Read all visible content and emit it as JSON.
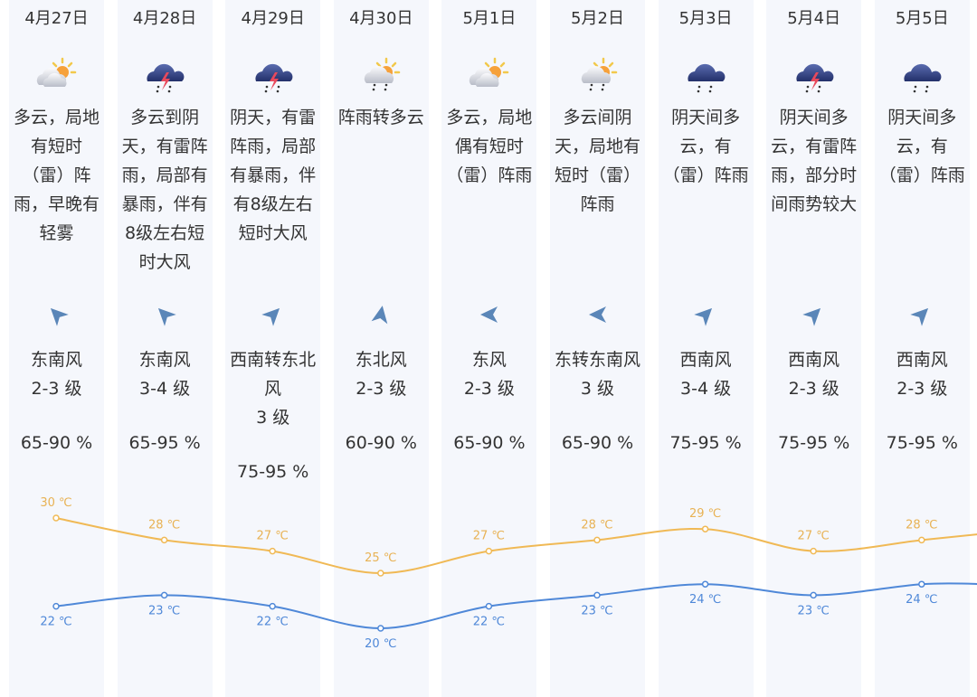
{
  "colors": {
    "high": "#f0b955",
    "low": "#4f88d8",
    "high_label": "#e8b254",
    "low_label": "#4f88d8",
    "column_bg": "#f5f7fc"
  },
  "days": [
    {
      "date": "4月27日",
      "icon": "partly-cloudy-icon",
      "desc": [
        "多云，局地",
        "有短时",
        "（雷）阵",
        "雨，早晚有",
        "轻雾"
      ],
      "wind_dir_deg": 225,
      "wind": [
        "东南风",
        "2-3 级"
      ],
      "humidity": "65-90 %",
      "high": "30 ℃",
      "low": "22 ℃"
    },
    {
      "date": "4月28日",
      "icon": "thunderstorm-icon",
      "desc": [
        "多云到阴",
        "天，有雷阵",
        "雨，局部有",
        "暴雨，伴有",
        "8级左右短",
        "时大风"
      ],
      "wind_dir_deg": 225,
      "wind": [
        "东南风",
        "3-4 级"
      ],
      "humidity": "65-95 %",
      "high": "28 ℃",
      "low": "23 ℃"
    },
    {
      "date": "4月29日",
      "icon": "thunderstorm-icon",
      "desc": [
        "阴天，有雷",
        "阵雨，局部",
        "有暴雨，伴",
        "有8级左右",
        "短时大风"
      ],
      "wind_dir_deg": 315,
      "wind": [
        "西南转东北",
        "风",
        "3 级"
      ],
      "humidity": "75-95 %",
      "high": "27 ℃",
      "low": "22 ℃"
    },
    {
      "date": "4月30日",
      "icon": "shower-icon",
      "desc": [
        "阵雨转多云"
      ],
      "wind_dir_deg": 280,
      "wind": [
        "东北风",
        "2-3 级"
      ],
      "humidity": "60-90 %",
      "high": "25 ℃",
      "low": "20 ℃"
    },
    {
      "date": "5月1日",
      "icon": "partly-cloudy-icon",
      "desc": [
        "多云，局地",
        "偶有短时",
        "（雷）阵雨"
      ],
      "wind_dir_deg": 180,
      "wind": [
        "东风",
        "2-3 级"
      ],
      "humidity": "65-90 %",
      "high": "27 ℃",
      "low": "22 ℃"
    },
    {
      "date": "5月2日",
      "icon": "shower-icon",
      "desc": [
        "多云间阴",
        "天，局地有",
        "短时（雷）",
        "阵雨"
      ],
      "wind_dir_deg": 180,
      "wind": [
        "东转东南风",
        "3 级"
      ],
      "humidity": "65-90 %",
      "high": "28 ℃",
      "low": "23 ℃"
    },
    {
      "date": "5月3日",
      "icon": "rain-icon",
      "desc": [
        "阴天间多",
        "云，有",
        "（雷）阵雨"
      ],
      "wind_dir_deg": 315,
      "wind": [
        "西南风",
        "3-4 级"
      ],
      "humidity": "75-95 %",
      "high": "29 ℃",
      "low": "24 ℃"
    },
    {
      "date": "5月4日",
      "icon": "thunderstorm-icon",
      "desc": [
        "阴天间多",
        "云，有雷阵",
        "雨，部分时",
        "间雨势较大"
      ],
      "wind_dir_deg": 315,
      "wind": [
        "西南风",
        "2-3 级"
      ],
      "humidity": "75-95 %",
      "high": "27 ℃",
      "low": "23 ℃"
    },
    {
      "date": "5月5日",
      "icon": "rain-icon",
      "desc": [
        "阴天间多",
        "云，有",
        "（雷）阵雨"
      ],
      "wind_dir_deg": 315,
      "wind": [
        "西南风",
        "2-3 级"
      ],
      "humidity": "75-95 %",
      "high": "28 ℃",
      "low": "24 ℃"
    }
  ],
  "chart_data": {
    "type": "line",
    "categories": [
      "4月27日",
      "4月28日",
      "4月29日",
      "4月30日",
      "5月1日",
      "5月2日",
      "5月3日",
      "5月4日",
      "5月5日"
    ],
    "series": [
      {
        "name": "high",
        "unit": "℃",
        "values": [
          30,
          28,
          27,
          25,
          27,
          28,
          29,
          27,
          28
        ]
      },
      {
        "name": "low",
        "unit": "℃",
        "values": [
          22,
          23,
          22,
          20,
          22,
          23,
          24,
          23,
          24
        ]
      }
    ]
  }
}
